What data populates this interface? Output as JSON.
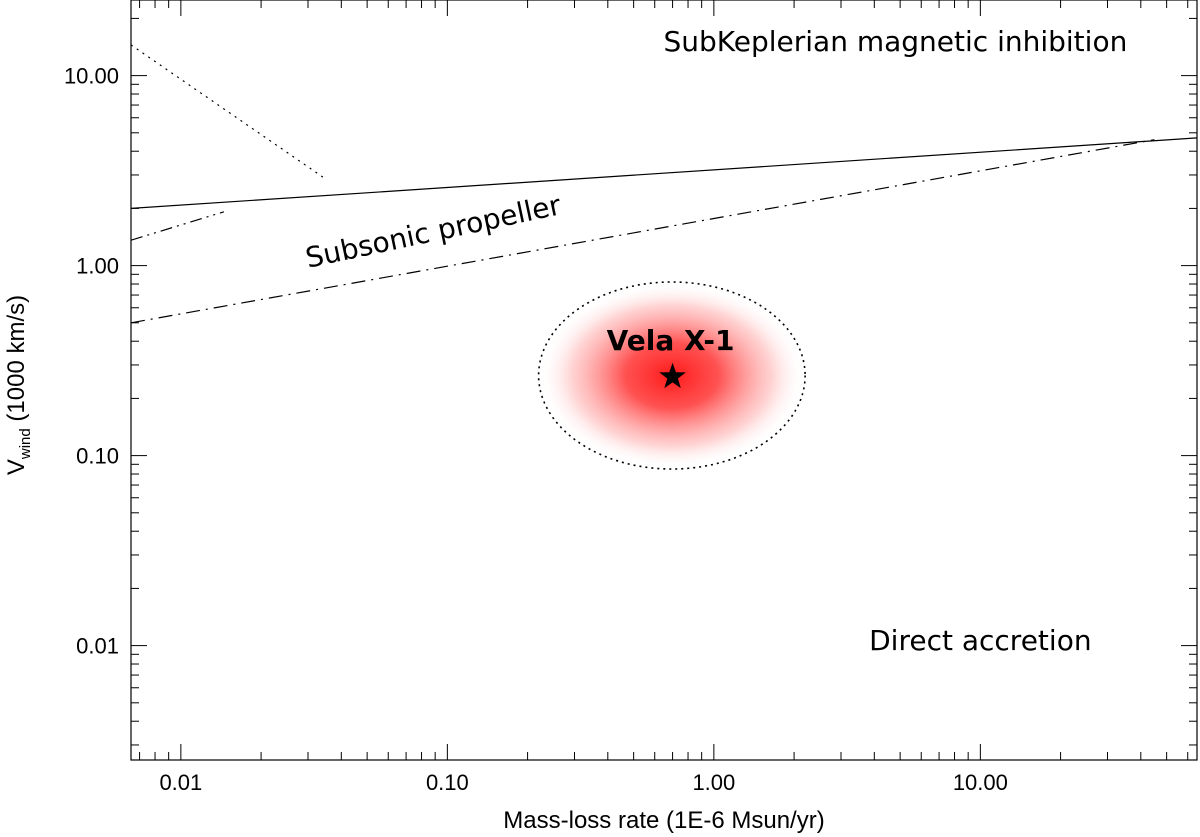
{
  "chart_data": {
    "type": "line",
    "xlabel": "Mass-loss rate (1E-6 Msun/yr)",
    "ylabel_main": "V",
    "ylabel_sub": "wind",
    "ylabel_unit": " (1000 km/s)",
    "x_scale": "log",
    "y_scale": "log",
    "xlim": [
      0.0065,
      65
    ],
    "ylim": [
      0.0025,
      25
    ],
    "x_ticks": [
      0.01,
      0.1,
      1,
      10
    ],
    "x_tick_labels": [
      "0.01",
      "0.10",
      "1.00",
      "10.00"
    ],
    "y_ticks": [
      0.01,
      0.1,
      1,
      10
    ],
    "y_tick_labels": [
      "0.01",
      "0.10",
      "1.00",
      "10.00"
    ],
    "grid": false,
    "series": [
      {
        "style": "solid",
        "points": [
          [
            0.0065,
            2.0
          ],
          [
            65,
            4.7
          ]
        ]
      },
      {
        "style": "dashdot",
        "points": [
          [
            0.0065,
            0.5
          ],
          [
            45,
            4.6
          ]
        ]
      },
      {
        "style": "dotted",
        "points": [
          [
            0.0065,
            14.5
          ],
          [
            0.035,
            2.85
          ]
        ]
      },
      {
        "style": "dashdotdot",
        "points": [
          [
            0.0065,
            1.36
          ],
          [
            0.0145,
            1.92
          ]
        ]
      }
    ],
    "regions": [
      {
        "label": "SubKeplerian magnetic inhibition",
        "x": 4.8,
        "y": 13.5
      },
      {
        "label": "Subsonic propeller",
        "x": 0.09,
        "y": 1.35,
        "angle_deg": -12
      },
      {
        "label": "Direct accretion",
        "x": 10,
        "y": 0.0095
      }
    ],
    "highlight": {
      "label": "Vela X-1",
      "marker": "star",
      "x": 0.7,
      "y": 0.26,
      "x_extent": [
        0.22,
        2.2
      ],
      "y_extent": [
        0.085,
        0.82
      ],
      "color": "#ff1a1a"
    }
  }
}
